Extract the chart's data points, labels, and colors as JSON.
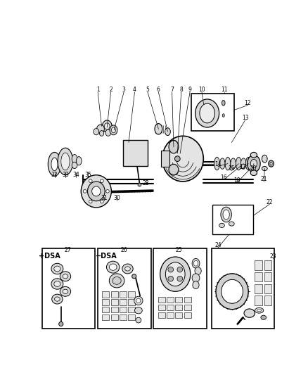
{
  "bg_color": "#ffffff",
  "line_color": "#000000",
  "fig_width": 4.39,
  "fig_height": 5.33,
  "dpi": 100,
  "gray_light": "#d8d8d8",
  "gray_mid": "#b0b0b0",
  "gray_dark": "#888888"
}
